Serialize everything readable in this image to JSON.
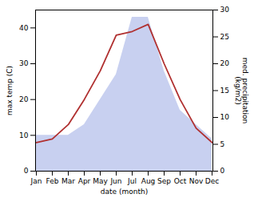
{
  "chart_data": {
    "type": "line",
    "xlabel": "date (month)",
    "ylabel": "max temp (C)",
    "y2label": "med. precipitation\n(kg/m2)",
    "categories": [
      "Jan",
      "Feb",
      "Mar",
      "Apr",
      "May",
      "Jun",
      "Jul",
      "Aug",
      "Sep",
      "Oct",
      "Nov",
      "Dec"
    ],
    "series": [
      {
        "type": "area",
        "color": "#c8d0f0",
        "values": [
          10,
          10,
          10,
          13,
          20,
          27,
          43,
          43,
          28,
          17,
          13,
          9
        ]
      },
      {
        "type": "line",
        "color": "#b03030",
        "values": [
          8,
          9,
          13,
          20,
          28,
          38,
          39,
          41,
          30,
          20,
          12,
          8
        ]
      }
    ],
    "ylim": [
      0,
      45
    ],
    "yticks": [
      0,
      10,
      20,
      30,
      40
    ],
    "y2lim": [
      0,
      30
    ],
    "y2ticks": [
      0,
      5,
      10,
      15,
      20,
      25,
      30
    ],
    "grid": false
  }
}
